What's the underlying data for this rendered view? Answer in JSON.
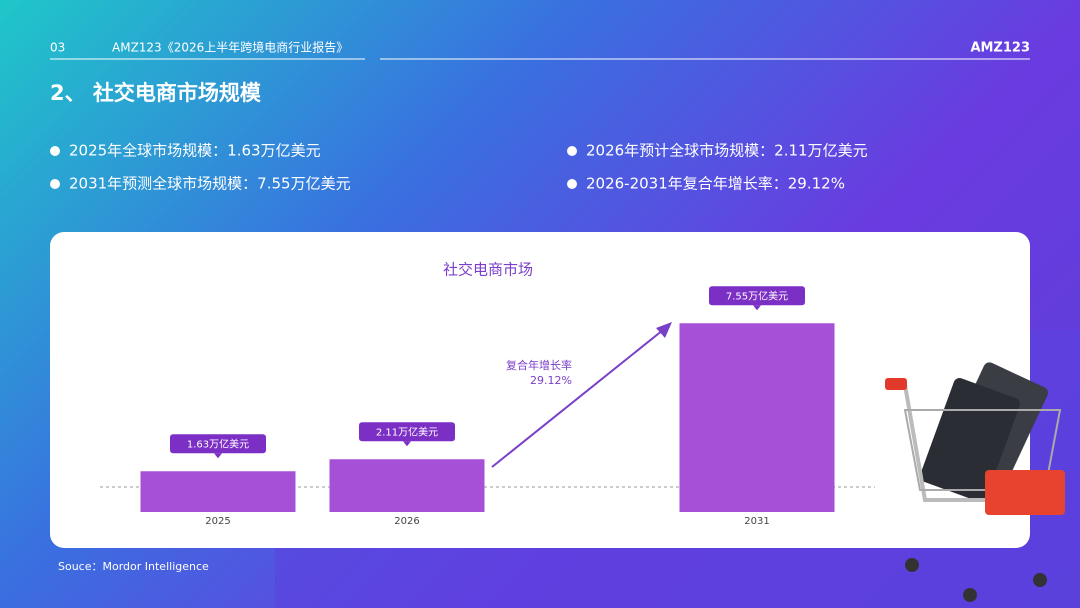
{
  "header": {
    "page": "03",
    "report": "AMZ123《2026上半年跨境电商行业报告》",
    "logo": "AMZ123"
  },
  "section_title": "2、 社交电商市场规模",
  "bullets": [
    "2025年全球市场规模：1.63万亿美元",
    "2026年预计全球市场规模：2.11万亿美元",
    "2031年预测全球市场规模：7.55万亿美元",
    "2026-2031年复合年增长率：29.12%"
  ],
  "source": "Souce：Mordor Intelligence",
  "chart_data": {
    "type": "bar",
    "title": "社交电商市场",
    "categories": [
      "2025",
      "2026",
      "2031"
    ],
    "values": [
      1.63,
      2.11,
      7.55
    ],
    "value_labels": [
      "1.63万亿美元",
      "2.11万亿美元",
      "7.55万亿美元"
    ],
    "color": "#a650d8",
    "annotations": [
      "复合年增长率",
      "29.12%"
    ]
  }
}
